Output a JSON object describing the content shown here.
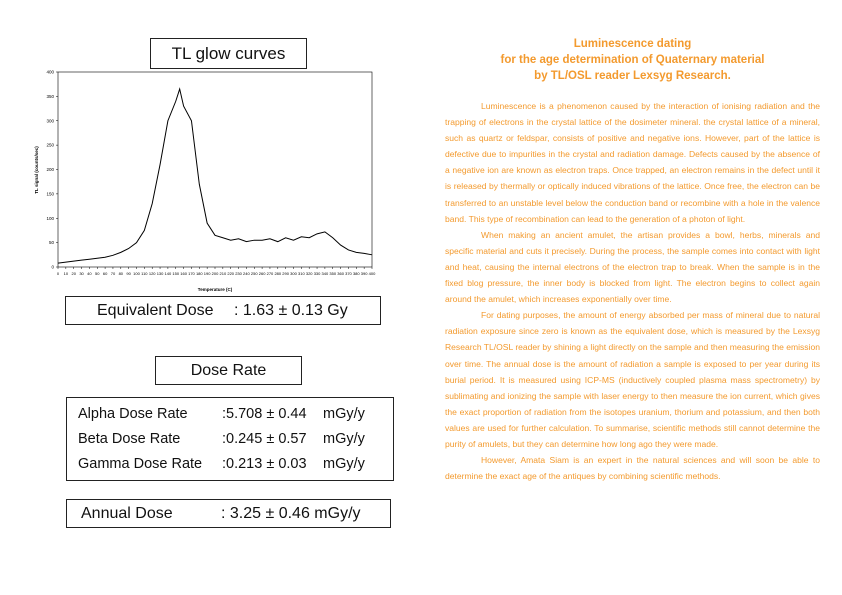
{
  "chart_data": {
    "type": "line",
    "title": "TL glow curves",
    "x_label": "Temperature (C)",
    "y_label": "TL signal (counts/sec)",
    "x": [
      0,
      10,
      20,
      30,
      40,
      50,
      60,
      70,
      80,
      90,
      100,
      110,
      120,
      130,
      140,
      150,
      155,
      160,
      170,
      180,
      190,
      200,
      210,
      220,
      230,
      240,
      250,
      260,
      270,
      280,
      290,
      300,
      310,
      320,
      330,
      340,
      350,
      360,
      370,
      380,
      390,
      400
    ],
    "series": [
      {
        "name": "TL signal",
        "color": "#000000",
        "values": [
          8,
          10,
          12,
          14,
          16,
          18,
          20,
          24,
          30,
          38,
          50,
          75,
          130,
          210,
          300,
          340,
          365,
          330,
          300,
          170,
          90,
          65,
          60,
          55,
          58,
          52,
          55,
          55,
          58,
          52,
          60,
          55,
          62,
          60,
          68,
          72,
          60,
          45,
          35,
          30,
          28,
          25
        ]
      }
    ],
    "xlim": [
      0,
      400
    ],
    "xticks": [
      0,
      10,
      20,
      30,
      40,
      50,
      60,
      70,
      80,
      90,
      100,
      110,
      120,
      130,
      140,
      150,
      160,
      170,
      180,
      190,
      200,
      210,
      220,
      230,
      240,
      250,
      260,
      270,
      280,
      290,
      300,
      310,
      320,
      330,
      340,
      350,
      360,
      370,
      380,
      390,
      400
    ],
    "ylim": [
      0,
      400
    ],
    "yticks": [
      0,
      50,
      100,
      150,
      200,
      250,
      300,
      350,
      400
    ],
    "grid": false
  },
  "equivalent_dose": {
    "label": "Equivalent Dose",
    "value": ": 1.63 ± 0.13 Gy"
  },
  "dose_rate": {
    "title": "Dose Rate",
    "rows": [
      {
        "label": "Alpha Dose Rate",
        "value": ":5.708 ± 0.44",
        "unit": "mGy/y"
      },
      {
        "label": "Beta Dose Rate",
        "value": ":0.245 ± 0.57",
        "unit": "mGy/y"
      },
      {
        "label": "Gamma Dose Rate",
        "value": ":0.213 ± 0.03",
        "unit": "mGy/y"
      }
    ]
  },
  "annual_dose": {
    "label": "Annual Dose",
    "value": ": 3.25 ± 0.46 mGy/y"
  },
  "article": {
    "title": [
      "Luminescence dating",
      "for the age determination of Quaternary material",
      "by TL/OSL reader Lexsyg Research."
    ],
    "paragraphs": [
      "Luminescence is a phenomenon caused by the interaction of ionising radiation and the trapping of electrons in the crystal lattice of the dosimeter mineral. the crystal lattice of a mineral, such as quartz or feldspar, consists of positive and negative ions. However, part of the lattice is defective due to impurities in the crystal and radiation damage. Defects caused by the absence of a negative ion are known as electron traps. Once trapped, an electron remains in the defect until it is released by thermally or optically induced vibrations of the lattice. Once free, the electron can be transferred to an unstable level below the conduction band or recombine with a hole in the valence band. This type of recombination can lead to the generation of a photon of light.",
      "When making an ancient amulet, the artisan provides a bowl, herbs, minerals and specific material and cuts it precisely. During the process, the sample comes into contact with light and heat, causing the internal electrons of the electron trap to break. When the sample is in the fixed blog pressure, the inner body is blocked from light. The electron begins to collect again around the amulet, which increases exponentially over time.",
      "For dating purposes, the amount of energy absorbed per mass of mineral due to natural radiation exposure since zero is known as the equivalent dose, which is measured by the Lexsyg Research TL/OSL reader by shining a light directly on the sample and then measuring the emission over time. The annual dose is the amount of radiation a sample is exposed to per year during its burial period. It is measured using ICP-MS (inductively coupled plasma mass spectrometry) by sublimating and ionizing the sample with laser energy to then measure the ion current, which gives the exact proportion of radiation from the isotopes uranium, thorium and potassium, and then both values are used for further calculation. To summarise, scientific methods still cannot determine the purity of amulets, but they can determine how long ago they were made.",
      "However, Amata Siam is an expert in the natural sciences and will soon be able to determine the exact age of the antiques by combining scientific methods."
    ]
  }
}
